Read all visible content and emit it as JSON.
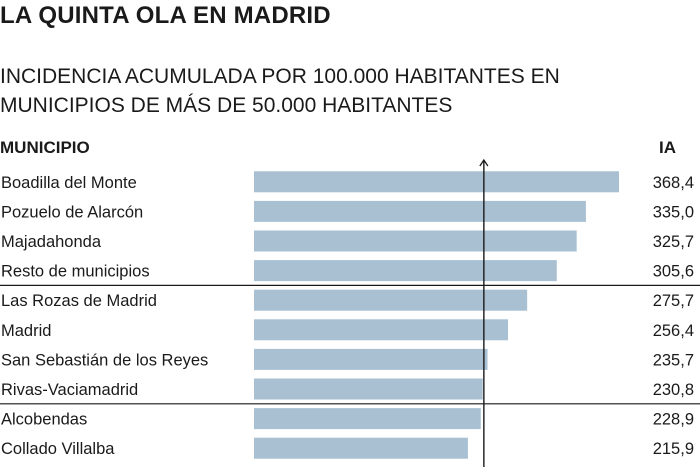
{
  "header": {
    "title": "LA QUINTA OLA EN MADRID",
    "subtitle": "INCIDENCIA ACUMULADA POR 100.000 HABITANTES EN MUNICIPIOS DE MÁS DE 50.000 HABITANTES",
    "col_municipio": "MUNICIPIO",
    "col_ia": "IA"
  },
  "colors": {
    "bar": "#a9c0d2",
    "line": "#1a1a1a",
    "text": "#1a1a1a"
  },
  "chart_data": {
    "type": "bar",
    "orientation": "horizontal",
    "categories": [
      "Boadilla del Monte",
      "Pozuelo de Alarcón",
      "Majadahonda",
      "Resto de municipios",
      "Las Rozas de Madrid",
      "Madrid",
      "San Sebastián de los Reyes",
      "Rivas-Vaciamadrid",
      "Alcobendas",
      "Collado Villalba"
    ],
    "values": [
      368.4,
      335.0,
      325.7,
      305.6,
      275.7,
      256.4,
      235.7,
      230.8,
      228.9,
      215.9
    ],
    "value_labels": [
      "368,4",
      "335,0",
      "325,7",
      "305,6",
      "275,7",
      "256,4",
      "235,7",
      "230,8",
      "228,9",
      "215,9"
    ],
    "reference_line": {
      "value": 232
    },
    "group_separators_after": [
      3,
      7
    ],
    "legend": "none",
    "grid": false
  }
}
